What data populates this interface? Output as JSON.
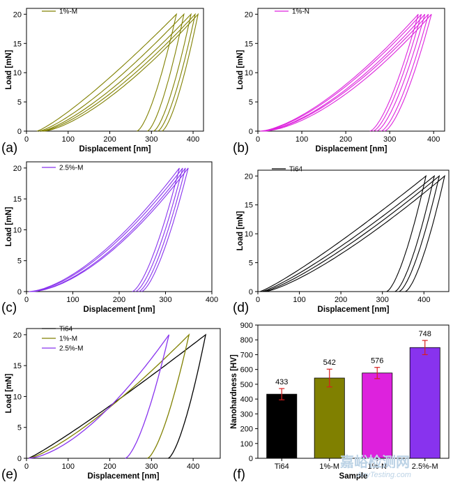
{
  "colors": {
    "Ti64": "#000000",
    "1%-M": "#808000",
    "1%-N": "#dd22dd",
    "2.5%-M": "#8833ee",
    "errorbar": "#d81e1e"
  },
  "watermark": {
    "main": "嘉峪检测网",
    "sub": "AnyTesting.com"
  },
  "chart_data": [
    {
      "id": "a",
      "type": "line",
      "panel_label": "(a)",
      "xlabel": "Displacement [nm]",
      "ylabel": "Load [mN]",
      "xlim": [
        0,
        425
      ],
      "ylim": [
        0,
        21
      ],
      "xticks": [
        0,
        100,
        200,
        300,
        400
      ],
      "yticks": [
        0,
        5,
        10,
        15,
        20
      ],
      "legend": [
        "1%-M"
      ],
      "color": "1%-M",
      "curves": [
        {
          "z0": 25,
          "k": 1.2,
          "xmax": 360,
          "xf": 265
        },
        {
          "z0": 30,
          "k": 1.3,
          "xmax": 378,
          "xf": 290
        },
        {
          "z0": 35,
          "k": 1.35,
          "xmax": 395,
          "xf": 305
        },
        {
          "z0": 38,
          "k": 1.4,
          "xmax": 405,
          "xf": 315
        },
        {
          "z0": 42,
          "k": 1.45,
          "xmax": 412,
          "xf": 325
        }
      ]
    },
    {
      "id": "b",
      "type": "line",
      "panel_label": "(b)",
      "xlabel": "Displacement [nm]",
      "ylabel": "Load [mN]",
      "xlim": [
        0,
        425
      ],
      "ylim": [
        0,
        21
      ],
      "xticks": [
        0,
        100,
        200,
        300,
        400
      ],
      "yticks": [
        0,
        5,
        10,
        15,
        20
      ],
      "legend": [
        "1%-N"
      ],
      "color": "1%-N",
      "curves": [
        {
          "z0": 5,
          "k": 1.5,
          "xmax": 365,
          "xf": 255
        },
        {
          "z0": 8,
          "k": 1.5,
          "xmax": 372,
          "xf": 262
        },
        {
          "z0": 10,
          "k": 1.55,
          "xmax": 380,
          "xf": 270
        },
        {
          "z0": 12,
          "k": 1.55,
          "xmax": 388,
          "xf": 280
        },
        {
          "z0": 14,
          "k": 1.6,
          "xmax": 395,
          "xf": 288
        }
      ]
    },
    {
      "id": "c",
      "type": "line",
      "panel_label": "(c)",
      "xlabel": "Displacement [nm]",
      "ylabel": "Load [mN]",
      "xlim": [
        0,
        400
      ],
      "ylim": [
        0,
        21
      ],
      "xticks": [
        0,
        100,
        200,
        300,
        400
      ],
      "yticks": [
        0,
        5,
        10,
        15,
        20
      ],
      "legend": [
        "2.5%-M"
      ],
      "color": "2.5%-M",
      "curves": [
        {
          "z0": 5,
          "k": 1.6,
          "xmax": 330,
          "xf": 228
        },
        {
          "z0": 8,
          "k": 1.6,
          "xmax": 337,
          "xf": 235
        },
        {
          "z0": 10,
          "k": 1.65,
          "xmax": 343,
          "xf": 242
        },
        {
          "z0": 12,
          "k": 1.65,
          "xmax": 349,
          "xf": 248
        }
      ]
    },
    {
      "id": "d",
      "type": "line",
      "panel_label": "(d)",
      "xlabel": "Displacement [nm]",
      "ylabel": "Load [mN]",
      "xlim": [
        0,
        460
      ],
      "ylim": [
        0,
        21
      ],
      "xticks": [
        0,
        100,
        200,
        300,
        400
      ],
      "yticks": [
        0,
        5,
        10,
        15,
        20
      ],
      "legend": [
        "Ti64"
      ],
      "color": "Ti64",
      "curves": [
        {
          "z0": 5,
          "k": 1.15,
          "xmax": 405,
          "xf": 310
        },
        {
          "z0": 10,
          "k": 1.2,
          "xmax": 425,
          "xf": 330
        },
        {
          "z0": 14,
          "k": 1.25,
          "xmax": 437,
          "xf": 340
        },
        {
          "z0": 18,
          "k": 1.3,
          "xmax": 450,
          "xf": 355
        }
      ]
    },
    {
      "id": "e",
      "type": "line",
      "panel_label": "(e)",
      "xlabel": "Displacement [nm]",
      "ylabel": "Load [mN]",
      "xlim": [
        0,
        465
      ],
      "ylim": [
        0,
        21
      ],
      "xticks": [
        0,
        100,
        200,
        300,
        400
      ],
      "yticks": [
        0,
        5,
        10,
        15,
        20
      ],
      "legend": [
        "Ti64",
        "1%-M",
        "2.5%-M"
      ],
      "series": [
        {
          "name": "Ti64",
          "color": "Ti64",
          "z0": 5,
          "k": 1.1,
          "xmax": 430,
          "xf": 340
        },
        {
          "name": "1%-M",
          "color": "1%-M",
          "z0": 5,
          "k": 1.3,
          "xmax": 390,
          "xf": 290
        },
        {
          "name": "2.5%-M",
          "color": "2.5%-M",
          "z0": 5,
          "k": 1.6,
          "xmax": 342,
          "xf": 237
        }
      ]
    },
    {
      "id": "f",
      "type": "bar",
      "panel_label": "(f)",
      "xlabel": "Sample",
      "ylabel": "Nanohardness [HV]",
      "ylim": [
        0,
        900
      ],
      "yticks": [
        0,
        100,
        200,
        300,
        400,
        500,
        600,
        700,
        800,
        900
      ],
      "categories": [
        "Ti64",
        "1%-M",
        "1%-N",
        "2.5%-M"
      ],
      "values": [
        433,
        542,
        576,
        748
      ],
      "errors": [
        38,
        60,
        38,
        48
      ],
      "value_labels": [
        "433",
        "542",
        "576",
        "748"
      ],
      "colors": [
        "Ti64",
        "1%-M",
        "1%-N",
        "2.5%-M"
      ]
    }
  ]
}
